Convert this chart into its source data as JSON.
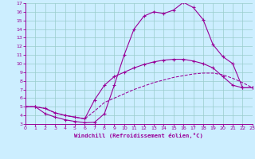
{
  "xlabel": "Windchill (Refroidissement éolien,°C)",
  "bg_color": "#cceeff",
  "grid_color": "#99cccc",
  "line_color": "#990099",
  "xlim": [
    0,
    23
  ],
  "ylim": [
    3,
    17
  ],
  "xticks": [
    0,
    1,
    2,
    3,
    4,
    5,
    6,
    7,
    8,
    9,
    10,
    11,
    12,
    13,
    14,
    15,
    16,
    17,
    18,
    19,
    20,
    21,
    22,
    23
  ],
  "yticks": [
    3,
    4,
    5,
    6,
    7,
    8,
    9,
    10,
    11,
    12,
    13,
    14,
    15,
    16,
    17
  ],
  "curve1_x": [
    0,
    1,
    2,
    3,
    4,
    5,
    6,
    7,
    8,
    9,
    10,
    11,
    12,
    13,
    14,
    15,
    16,
    17,
    18,
    19,
    20,
    21,
    22,
    23
  ],
  "curve1_y": [
    5.0,
    5.0,
    4.2,
    3.8,
    3.5,
    3.3,
    3.15,
    3.2,
    4.2,
    7.5,
    11.0,
    14.0,
    15.5,
    16.0,
    15.8,
    16.2,
    17.1,
    16.5,
    15.1,
    12.2,
    10.8,
    10.0,
    7.2,
    7.2
  ],
  "curve2_x": [
    0,
    1,
    2,
    3,
    4,
    5,
    6,
    7,
    8,
    9,
    10,
    11,
    12,
    13,
    14,
    15,
    16,
    17,
    18,
    19,
    20,
    21,
    22,
    23
  ],
  "curve2_y": [
    5.0,
    5.0,
    4.8,
    4.3,
    4.0,
    3.8,
    3.6,
    5.8,
    7.5,
    8.5,
    9.0,
    9.5,
    9.9,
    10.2,
    10.4,
    10.5,
    10.5,
    10.3,
    10.0,
    9.5,
    8.5,
    7.5,
    7.2,
    7.2
  ],
  "curve3_x": [
    0,
    1,
    2,
    3,
    4,
    5,
    6,
    7,
    8,
    9,
    10,
    11,
    12,
    13,
    14,
    15,
    16,
    17,
    18,
    19,
    20,
    21,
    22,
    23
  ],
  "curve3_y": [
    5.0,
    5.0,
    4.8,
    4.3,
    4.0,
    3.8,
    3.6,
    4.5,
    5.5,
    6.0,
    6.5,
    7.0,
    7.4,
    7.8,
    8.1,
    8.4,
    8.6,
    8.8,
    8.9,
    8.9,
    8.7,
    8.3,
    7.8,
    7.2
  ]
}
